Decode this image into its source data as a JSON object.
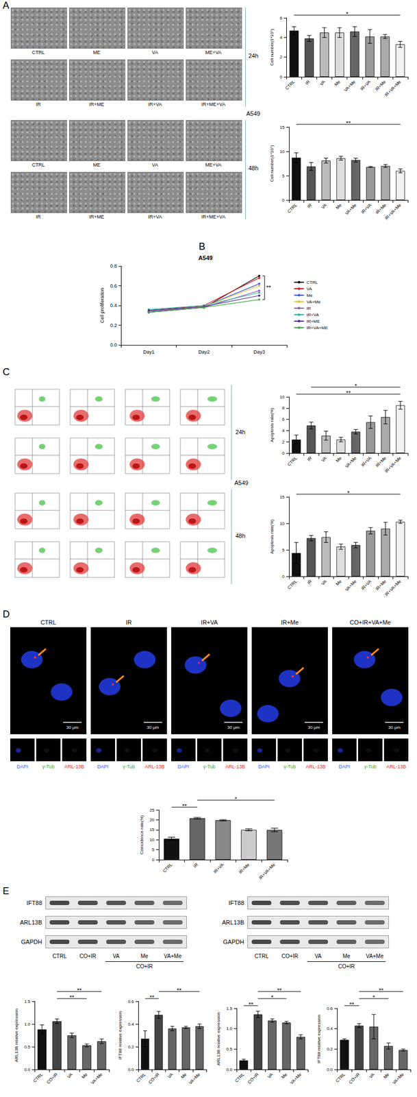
{
  "panel_letters": [
    "A",
    "B",
    "C",
    "D",
    "E"
  ],
  "micrographs": {
    "cell_line": "A549",
    "groups": [
      {
        "time": "24h",
        "labels": [
          "CTRL",
          "ME",
          "VA",
          "ME+VA",
          "IR",
          "IR+ME",
          "IR+VA",
          "IR+ME+VA"
        ]
      },
      {
        "time": "48h",
        "labels": [
          "CTRL",
          "ME",
          "VA",
          "ME+VA",
          "IR",
          "IR+ME",
          "IR+VA",
          "IR+ME+VA"
        ]
      }
    ]
  },
  "flow_cytometry": {
    "cell_line": "A549",
    "groups": [
      {
        "time": "24h"
      },
      {
        "time": "48h"
      }
    ]
  },
  "immunofluorescence": {
    "columns": [
      "CTRL",
      "IR",
      "IR+VA",
      "IR+Me",
      "CO+IR+VA+Me"
    ],
    "scale_bar": "30 μm",
    "channels": [
      "DAPI",
      "γ-Tub",
      "ARL-13B"
    ]
  },
  "western_blots": [
    {
      "rows": [
        "IFT88",
        "ARL13B",
        "GAPDH"
      ],
      "lanes": [
        "CTRL",
        "CO+IR",
        "VA",
        "Me",
        "VA+Me"
      ],
      "bracket": "CO+IR"
    },
    {
      "rows": [
        "IFT88",
        "ARL13B",
        "GAPDH"
      ],
      "lanes": [
        "CTRL",
        "CO+IR",
        "VA",
        "Me",
        "VA+Me"
      ],
      "bracket": "CO+IR"
    }
  ],
  "chart_data": [
    {
      "type": "bar",
      "y_label": "Cell number(1*10⁵)",
      "categories": [
        "CTRL",
        "IR",
        "VA",
        "Me",
        "VA+Me",
        "IR+VA",
        "IR+Me",
        "IR+VA+Me"
      ],
      "values": [
        4.7,
        3.9,
        4.5,
        4.5,
        4.6,
        4.1,
        4.1,
        3.3
      ],
      "errors": [
        0.4,
        0.3,
        0.5,
        0.5,
        0.5,
        0.7,
        0.2,
        0.3
      ],
      "colors": [
        "#111111",
        "#555555",
        "#bbbbbb",
        "#dddddd",
        "#666666",
        "#999999",
        "#aaaaaa",
        "#f2f2f2"
      ],
      "ylim": [
        0,
        6
      ],
      "yticks": [
        0,
        2,
        4,
        6
      ],
      "grid": false,
      "annotations": [
        {
          "text": "*",
          "from": "CTRL",
          "to": "IR+VA+Me"
        }
      ]
    },
    {
      "type": "bar",
      "y_label": "Cell number(1*10⁵)",
      "categories": [
        "CTRL",
        "IR",
        "VA",
        "Me",
        "VA+Me",
        "IR+VA",
        "IR+Me",
        "IR+VA+Me"
      ],
      "values": [
        8.7,
        6.9,
        8.1,
        8.6,
        8.2,
        6.8,
        7.0,
        6.0
      ],
      "errors": [
        1.0,
        0.8,
        0.5,
        0.4,
        0.4,
        0.1,
        0.3,
        0.4
      ],
      "colors": [
        "#111111",
        "#555555",
        "#bbbbbb",
        "#dddddd",
        "#666666",
        "#999999",
        "#aaaaaa",
        "#f2f2f2"
      ],
      "ylim": [
        0,
        15
      ],
      "yticks": [
        0,
        5,
        10,
        15
      ],
      "grid": false,
      "annotations": [
        {
          "text": "**",
          "from": "CTRL",
          "to": "IR+VA+Me"
        }
      ]
    },
    {
      "type": "line",
      "title": "A549",
      "y_label": "Cell proliferation",
      "categories": [
        "Day1",
        "Day2",
        "Day3"
      ],
      "ylim": [
        0,
        0.8
      ],
      "yticks": [
        {
          "value": 0,
          "label": "0.0"
        },
        0.2,
        0.4,
        0.6,
        0.8
      ],
      "grid": false,
      "legend": "right",
      "marker": "circle",
      "series": [
        {
          "name": "CTRL",
          "color": "#000000",
          "values": [
            0.33,
            0.38,
            0.7
          ]
        },
        {
          "name": "VA",
          "color": "#e41a1c",
          "values": [
            0.35,
            0.4,
            0.68
          ]
        },
        {
          "name": "Me",
          "color": "#3b5bdb",
          "values": [
            0.34,
            0.39,
            0.62
          ]
        },
        {
          "name": "VA+Me",
          "color": "#e6c229",
          "values": [
            0.35,
            0.39,
            0.6
          ]
        },
        {
          "name": "IR",
          "color": "#9b59b6",
          "values": [
            0.34,
            0.38,
            0.55
          ]
        },
        {
          "name": "IR+VA",
          "color": "#2ab7a9",
          "values": [
            0.36,
            0.4,
            0.53
          ]
        },
        {
          "name": "IR+ME",
          "color": "#4b2c91",
          "values": [
            0.35,
            0.39,
            0.5
          ]
        },
        {
          "name": "IR+VA+ME",
          "color": "#3cb043",
          "values": [
            0.33,
            0.38,
            0.46
          ]
        }
      ],
      "annotations": [
        {
          "text": "**",
          "from": "CTRL",
          "to": "IR+VA+ME",
          "at": "Day3"
        }
      ]
    },
    {
      "type": "bar",
      "y_label": "Apoptosis rate(%)",
      "categories": [
        "CTRL",
        "IR",
        "VA",
        "Me",
        "VA+Me",
        "IR+VA",
        "IR+Me",
        "IR+VA+Me"
      ],
      "values": [
        2.4,
        4.9,
        3.1,
        2.4,
        3.8,
        5.5,
        6.4,
        8.5
      ],
      "errors": [
        0.8,
        0.6,
        0.8,
        0.4,
        0.4,
        1.1,
        1.2,
        0.7
      ],
      "colors": [
        "#111111",
        "#555555",
        "#bbbbbb",
        "#dddddd",
        "#666666",
        "#999999",
        "#aaaaaa",
        "#f2f2f2"
      ],
      "ylim": [
        0,
        10
      ],
      "yticks": [
        0,
        2,
        4,
        6,
        8,
        10
      ],
      "grid": false,
      "annotations": [
        {
          "text": "**",
          "from": "CTRL",
          "to": "IR+VA+Me"
        },
        {
          "text": "*",
          "from": "IR",
          "to": "IR+VA+Me"
        }
      ]
    },
    {
      "type": "bar",
      "y_label": "Apoptosis rate(%)",
      "categories": [
        "CTRL",
        "IR",
        "VA",
        "Me",
        "VA+Me",
        "IR+VA",
        "IR+Me",
        "IR+VA+Me"
      ],
      "values": [
        4.4,
        7.2,
        7.4,
        5.6,
        5.9,
        8.6,
        9.0,
        10.3
      ],
      "errors": [
        2.0,
        0.5,
        1.0,
        0.5,
        0.5,
        0.6,
        1.2,
        0.3
      ],
      "colors": [
        "#111111",
        "#555555",
        "#bbbbbb",
        "#dddddd",
        "#666666",
        "#999999",
        "#aaaaaa",
        "#f2f2f2"
      ],
      "ylim": [
        0,
        15
      ],
      "yticks": [
        0,
        5,
        10,
        15
      ],
      "grid": false,
      "annotations": [
        {
          "text": "*",
          "from": "CTRL",
          "to": "IR+VA+Me"
        }
      ]
    },
    {
      "type": "bar",
      "y_label": "Coincidence rate(%)",
      "categories": [
        "CTRL",
        "IR",
        "IR+VA",
        "IR+Me",
        "IR+VA+Me"
      ],
      "values": [
        10.5,
        20.8,
        19.8,
        15.0,
        14.9
      ],
      "errors": [
        0.8,
        0.4,
        0.3,
        0.5,
        0.9
      ],
      "colors": [
        "#111111",
        "#666666",
        "#888888",
        "#cccccc",
        "#777777"
      ],
      "ylim": [
        0,
        25
      ],
      "yticks": [
        0,
        5,
        10,
        15,
        20,
        25
      ],
      "grid": false,
      "annotations": [
        {
          "text": "**",
          "from": "CTRL",
          "to": "IR"
        },
        {
          "text": "*",
          "from": "IR",
          "to": "IR+VA+Me"
        }
      ]
    },
    {
      "type": "bar",
      "y_label": "ARL13B relative expression",
      "categories": [
        "CTRL",
        "CO+IR",
        "VA",
        "Me",
        "VA+Me"
      ],
      "values": [
        0.88,
        1.06,
        0.75,
        0.53,
        0.62
      ],
      "errors": [
        0.1,
        0.05,
        0.05,
        0.03,
        0.05
      ],
      "colors": [
        "#111111",
        "#444444",
        "#666666",
        "#666666",
        "#666666"
      ],
      "ylim": [
        0,
        1.5
      ],
      "yticks": [
        {
          "value": 0,
          "label": "0.0"
        },
        0.5,
        {
          "value": 1,
          "label": "1.0"
        },
        1.5
      ],
      "grid": false,
      "annotations": [
        {
          "text": "**",
          "from": "CO+IR",
          "to": "Me"
        },
        {
          "text": "**",
          "from": "CO+IR",
          "to": "VA+Me"
        }
      ]
    },
    {
      "type": "bar",
      "y_label": "IFT88 relative expression",
      "categories": [
        "CTRL",
        "CO+IR",
        "VA",
        "Me",
        "VA+Me"
      ],
      "values": [
        0.27,
        0.48,
        0.36,
        0.37,
        0.38
      ],
      "errors": [
        0.07,
        0.03,
        0.02,
        0.01,
        0.02
      ],
      "colors": [
        "#111111",
        "#444444",
        "#666666",
        "#666666",
        "#666666"
      ],
      "ylim": [
        0,
        0.6
      ],
      "yticks": [
        {
          "value": 0,
          "label": "0.0"
        },
        0.2,
        0.4,
        0.6
      ],
      "grid": false,
      "annotations": [
        {
          "text": "**",
          "from": "CTRL",
          "to": "CO+IR"
        },
        {
          "text": "**",
          "from": "CO+IR",
          "to": "VA+Me"
        }
      ]
    },
    {
      "type": "bar",
      "y_label": "ARL13B relative expression",
      "categories": [
        "CTRL",
        "CO+IR",
        "VA",
        "Me",
        "VA+Me"
      ],
      "values": [
        0.22,
        1.35,
        1.2,
        1.15,
        0.8
      ],
      "errors": [
        0.03,
        0.08,
        0.04,
        0.03,
        0.05
      ],
      "colors": [
        "#111111",
        "#444444",
        "#666666",
        "#666666",
        "#666666"
      ],
      "ylim": [
        0,
        1.5
      ],
      "yticks": [
        {
          "value": 0,
          "label": "0.0"
        },
        0.5,
        {
          "value": 1,
          "label": "1.0"
        },
        1.5
      ],
      "grid": false,
      "annotations": [
        {
          "text": "**",
          "from": "CTRL",
          "to": "CO+IR"
        },
        {
          "text": "*",
          "from": "CO+IR",
          "to": "Me"
        },
        {
          "text": "**",
          "from": "CO+IR",
          "to": "VA+Me"
        }
      ]
    },
    {
      "type": "bar",
      "y_label": "IFT88 relative expression",
      "categories": [
        "CTRL",
        "CO+IR",
        "VA",
        "Me",
        "VA+Me"
      ],
      "values": [
        0.29,
        0.43,
        0.42,
        0.23,
        0.19
      ],
      "errors": [
        0.01,
        0.02,
        0.12,
        0.03,
        0.01
      ],
      "colors": [
        "#111111",
        "#444444",
        "#666666",
        "#666666",
        "#666666"
      ],
      "ylim": [
        0,
        0.6
      ],
      "yticks": [
        {
          "value": 0,
          "label": "0.0"
        },
        0.2,
        0.4,
        0.6
      ],
      "grid": false,
      "annotations": [
        {
          "text": "**",
          "from": "CTRL",
          "to": "CO+IR"
        },
        {
          "text": "*",
          "from": "CO+IR",
          "to": "Me"
        },
        {
          "text": "**",
          "from": "CO+IR",
          "to": "VA+Me"
        }
      ]
    }
  ]
}
